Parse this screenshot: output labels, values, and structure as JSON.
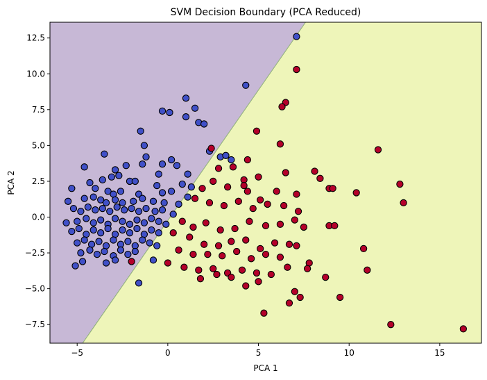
{
  "chart_data": {
    "type": "scatter",
    "title": "SVM Decision Boundary (PCA Reduced)",
    "xlabel": "PCA 1",
    "ylabel": "PCA 2",
    "xlim": [
      -6.5,
      17.3
    ],
    "ylim": [
      -8.8,
      13.6
    ],
    "x_ticks": [
      -5,
      0,
      5,
      10,
      15
    ],
    "y_ticks": [
      -7.5,
      -5.0,
      -2.5,
      0.0,
      2.5,
      5.0,
      7.5,
      10.0,
      12.5
    ],
    "x_tick_labels": [
      "−5",
      "0",
      "5",
      "10",
      "15"
    ],
    "y_tick_labels": [
      "−7.5",
      "−5.0",
      "−2.5",
      "0.0",
      "2.5",
      "5.0",
      "7.5",
      "10.0",
      "12.5"
    ],
    "grid": false,
    "decision_boundary": {
      "points": [
        [
          -4.7,
          -8.8
        ],
        [
          7.6,
          13.6
        ]
      ],
      "region_left_color": "#c7b8d6",
      "region_right_color": "#eef5b9",
      "boundary_color": "#8fb07a"
    },
    "colors": {
      "class_0": "#4050c8",
      "class_1": "#b5002a",
      "marker_edge": "#000000"
    },
    "series": [
      {
        "class": 0,
        "points": [
          [
            7.1,
            12.6
          ],
          [
            4.3,
            9.2
          ],
          [
            1.0,
            8.3
          ],
          [
            1.5,
            7.6
          ],
          [
            -0.3,
            7.4
          ],
          [
            0.1,
            7.3
          ],
          [
            1.0,
            7.0
          ],
          [
            1.7,
            6.6
          ],
          [
            2.0,
            6.5
          ],
          [
            -1.5,
            6.0
          ],
          [
            -1.3,
            5.0
          ],
          [
            -3.5,
            4.4
          ],
          [
            0.2,
            4.0
          ],
          [
            -1.2,
            4.2
          ],
          [
            2.3,
            4.6
          ],
          [
            2.9,
            4.2
          ],
          [
            3.5,
            4.0
          ],
          [
            3.2,
            4.3
          ],
          [
            -2.3,
            3.6
          ],
          [
            -1.4,
            3.7
          ],
          [
            -0.3,
            3.7
          ],
          [
            0.5,
            3.6
          ],
          [
            -4.6,
            3.5
          ],
          [
            -0.5,
            3.0
          ],
          [
            1.1,
            3.0
          ],
          [
            -2.9,
            3.3
          ],
          [
            -2.7,
            2.9
          ],
          [
            -3.1,
            2.8
          ],
          [
            -3.6,
            2.6
          ],
          [
            -2.1,
            2.5
          ],
          [
            -1.8,
            2.5
          ],
          [
            -0.6,
            2.2
          ],
          [
            0.8,
            2.3
          ],
          [
            1.3,
            2.1
          ],
          [
            -4.3,
            2.4
          ],
          [
            -5.3,
            2.0
          ],
          [
            -4.0,
            2.0
          ],
          [
            -3.3,
            1.8
          ],
          [
            -3.0,
            1.6
          ],
          [
            -2.6,
            1.8
          ],
          [
            -1.6,
            1.6
          ],
          [
            -0.3,
            1.7
          ],
          [
            0.2,
            1.8
          ],
          [
            -5.5,
            1.1
          ],
          [
            -4.6,
            1.3
          ],
          [
            -4.1,
            1.4
          ],
          [
            -3.7,
            1.2
          ],
          [
            -3.4,
            1.0
          ],
          [
            -2.9,
            1.2
          ],
          [
            -2.5,
            1.0
          ],
          [
            -1.9,
            1.1
          ],
          [
            -1.4,
            1.3
          ],
          [
            -0.8,
            1.1
          ],
          [
            -0.2,
            1.0
          ],
          [
            0.6,
            0.9
          ],
          [
            1.1,
            1.4
          ],
          [
            -5.2,
            0.6
          ],
          [
            -4.8,
            0.4
          ],
          [
            -4.4,
            0.7
          ],
          [
            -4.0,
            0.5
          ],
          [
            -3.6,
            0.6
          ],
          [
            -3.2,
            0.4
          ],
          [
            -2.8,
            0.7
          ],
          [
            -2.4,
            0.5
          ],
          [
            -2.0,
            0.6
          ],
          [
            -1.6,
            0.4
          ],
          [
            -1.2,
            0.6
          ],
          [
            -0.7,
            0.4
          ],
          [
            -0.3,
            0.5
          ],
          [
            0.3,
            0.2
          ],
          [
            -5.6,
            -0.4
          ],
          [
            -5.0,
            -0.3
          ],
          [
            -4.5,
            -0.1
          ],
          [
            -4.1,
            -0.4
          ],
          [
            -3.7,
            -0.2
          ],
          [
            -3.3,
            -0.5
          ],
          [
            -2.9,
            -0.1
          ],
          [
            -2.5,
            -0.3
          ],
          [
            -2.1,
            -0.5
          ],
          [
            -1.7,
            -0.2
          ],
          [
            -1.3,
            -0.4
          ],
          [
            -0.9,
            -0.1
          ],
          [
            -0.5,
            -0.3
          ],
          [
            -0.1,
            -0.5
          ],
          [
            -5.3,
            -1.0
          ],
          [
            -4.9,
            -0.8
          ],
          [
            -4.5,
            -1.2
          ],
          [
            -4.1,
            -0.9
          ],
          [
            -3.7,
            -1.1
          ],
          [
            -3.3,
            -0.8
          ],
          [
            -2.9,
            -1.2
          ],
          [
            -2.5,
            -0.9
          ],
          [
            -2.1,
            -1.1
          ],
          [
            -1.7,
            -0.8
          ],
          [
            -1.3,
            -1.2
          ],
          [
            -0.9,
            -0.9
          ],
          [
            -0.5,
            -1.1
          ],
          [
            -5.0,
            -1.8
          ],
          [
            -4.6,
            -1.6
          ],
          [
            -4.2,
            -1.9
          ],
          [
            -3.8,
            -1.7
          ],
          [
            -3.4,
            -2.0
          ],
          [
            -3.0,
            -1.6
          ],
          [
            -2.6,
            -1.9
          ],
          [
            -2.2,
            -1.7
          ],
          [
            -1.8,
            -2.0
          ],
          [
            -1.4,
            -1.6
          ],
          [
            -1.0,
            -1.8
          ],
          [
            -0.6,
            -2.0
          ],
          [
            -4.8,
            -2.5
          ],
          [
            -4.3,
            -2.3
          ],
          [
            -3.9,
            -2.6
          ],
          [
            -3.5,
            -2.4
          ],
          [
            -3.0,
            -2.7
          ],
          [
            -2.6,
            -2.3
          ],
          [
            -2.2,
            -2.6
          ],
          [
            -1.8,
            -2.4
          ],
          [
            -5.1,
            -3.4
          ],
          [
            -4.7,
            -3.1
          ],
          [
            -3.4,
            -3.2
          ],
          [
            -2.9,
            -3.0
          ],
          [
            -0.8,
            -3.0
          ],
          [
            -1.6,
            -4.6
          ]
        ]
      },
      {
        "class": 1,
        "points": [
          [
            7.1,
            10.3
          ],
          [
            6.5,
            8.0
          ],
          [
            6.3,
            7.7
          ],
          [
            4.9,
            6.0
          ],
          [
            2.4,
            4.8
          ],
          [
            4.4,
            4.0
          ],
          [
            6.2,
            5.1
          ],
          [
            11.6,
            4.7
          ],
          [
            3.6,
            3.5
          ],
          [
            2.8,
            3.4
          ],
          [
            4.2,
            2.6
          ],
          [
            5.0,
            2.8
          ],
          [
            6.5,
            3.1
          ],
          [
            8.1,
            3.2
          ],
          [
            8.9,
            2.0
          ],
          [
            9.1,
            2.0
          ],
          [
            10.4,
            1.7
          ],
          [
            12.8,
            2.3
          ],
          [
            13.0,
            1.0
          ],
          [
            8.4,
            2.7
          ],
          [
            7.1,
            1.6
          ],
          [
            6.0,
            1.8
          ],
          [
            5.1,
            1.2
          ],
          [
            4.4,
            1.8
          ],
          [
            3.3,
            2.1
          ],
          [
            2.5,
            2.5
          ],
          [
            1.9,
            2.0
          ],
          [
            1.5,
            1.3
          ],
          [
            2.3,
            1.0
          ],
          [
            3.1,
            0.8
          ],
          [
            3.9,
            1.1
          ],
          [
            4.7,
            0.6
          ],
          [
            5.5,
            0.9
          ],
          [
            6.4,
            0.8
          ],
          [
            7.2,
            0.4
          ],
          [
            7.5,
            -0.7
          ],
          [
            8.9,
            -0.6
          ],
          [
            9.2,
            -0.6
          ],
          [
            7.0,
            -0.2
          ],
          [
            6.2,
            -0.5
          ],
          [
            5.4,
            -0.6
          ],
          [
            4.5,
            -0.3
          ],
          [
            3.7,
            -0.8
          ],
          [
            2.9,
            -0.9
          ],
          [
            2.1,
            -0.4
          ],
          [
            1.4,
            -0.7
          ],
          [
            0.8,
            -0.3
          ],
          [
            0.3,
            -1.1
          ],
          [
            1.2,
            -1.4
          ],
          [
            2.0,
            -1.9
          ],
          [
            2.8,
            -2.0
          ],
          [
            3.5,
            -1.7
          ],
          [
            4.3,
            -1.6
          ],
          [
            5.1,
            -2.2
          ],
          [
            5.9,
            -1.8
          ],
          [
            6.7,
            -1.9
          ],
          [
            7.1,
            -2.0
          ],
          [
            0.6,
            -2.3
          ],
          [
            1.4,
            -2.6
          ],
          [
            2.2,
            -2.6
          ],
          [
            3.0,
            -2.7
          ],
          [
            3.8,
            -2.4
          ],
          [
            4.6,
            -2.9
          ],
          [
            5.4,
            -2.6
          ],
          [
            6.2,
            -2.8
          ],
          [
            7.8,
            -3.2
          ],
          [
            10.8,
            -2.2
          ],
          [
            0.0,
            -3.2
          ],
          [
            0.9,
            -3.5
          ],
          [
            1.7,
            -3.7
          ],
          [
            2.5,
            -3.6
          ],
          [
            3.3,
            -3.9
          ],
          [
            4.1,
            -3.7
          ],
          [
            4.9,
            -3.9
          ],
          [
            5.7,
            -4.0
          ],
          [
            6.6,
            -3.5
          ],
          [
            7.7,
            -3.6
          ],
          [
            8.7,
            -4.2
          ],
          [
            11.0,
            -3.7
          ],
          [
            1.8,
            -4.3
          ],
          [
            2.7,
            -4.0
          ],
          [
            3.5,
            -4.2
          ],
          [
            4.3,
            -4.8
          ],
          [
            5.0,
            -4.5
          ],
          [
            7.0,
            -5.2
          ],
          [
            7.3,
            -5.6
          ],
          [
            6.7,
            -6.0
          ],
          [
            5.3,
            -6.7
          ],
          [
            9.5,
            -5.6
          ],
          [
            12.3,
            -7.5
          ],
          [
            16.3,
            -7.8
          ],
          [
            -2.0,
            -3.1
          ],
          [
            4.2,
            2.2
          ]
        ]
      }
    ]
  }
}
